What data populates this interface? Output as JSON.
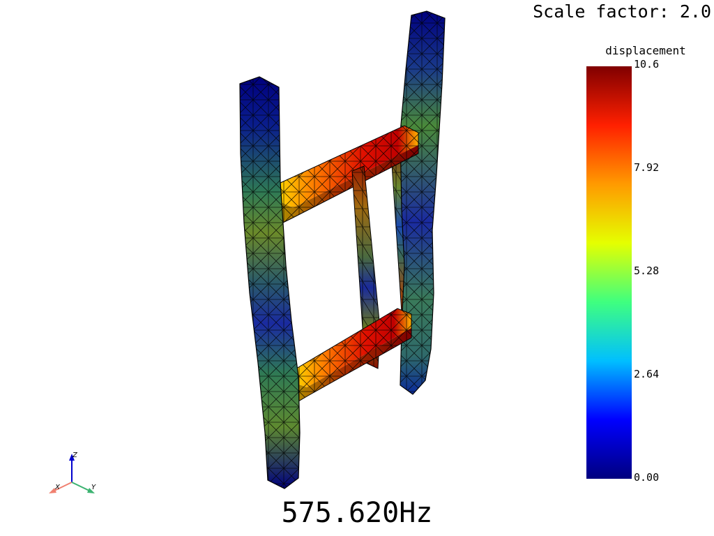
{
  "scale_label": "Scale factor: 2.0",
  "frequency_label": "575.620Hz",
  "colorbar": {
    "title": "displacement",
    "ticks": [
      "10.6",
      "7.92",
      "5.28",
      "2.64",
      "0.00"
    ],
    "min": 0.0,
    "max": 10.6,
    "colormap": [
      "#00007f",
      "#0000ff",
      "#00bfff",
      "#3fff7f",
      "#e5ff00",
      "#ff9a00",
      "#ff2000",
      "#800000"
    ]
  },
  "axes": {
    "x_label": "X",
    "y_label": "Y",
    "z_label": "Z",
    "x_color": "#f08070",
    "y_color": "#3cb371",
    "z_color": "#0000cd"
  }
}
